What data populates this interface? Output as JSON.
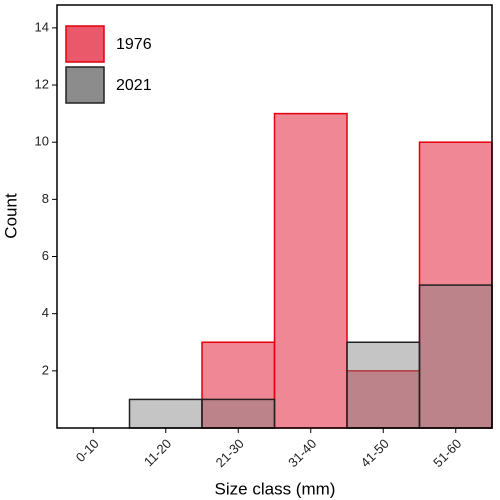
{
  "chart_data": {
    "type": "bar",
    "x_label": "Size class (mm)",
    "y_label": "Count",
    "categories": [
      "0-10",
      "11-20",
      "21-30",
      "31-40",
      "41-50",
      "51-60"
    ],
    "series": [
      {
        "name": "1976",
        "color": "#e8475a",
        "edge": "#e3000f",
        "values": [
          0,
          0,
          3,
          11,
          2,
          10
        ]
      },
      {
        "name": "2021",
        "color": "#7f7f7f",
        "edge": "#222222",
        "values": [
          0,
          1,
          1,
          0,
          3,
          5
        ]
      }
    ],
    "ylim": [
      0,
      14.8
    ],
    "yticks": [
      2,
      4,
      6,
      8,
      10,
      12,
      14
    ],
    "legend": "top-left",
    "grid": false
  }
}
